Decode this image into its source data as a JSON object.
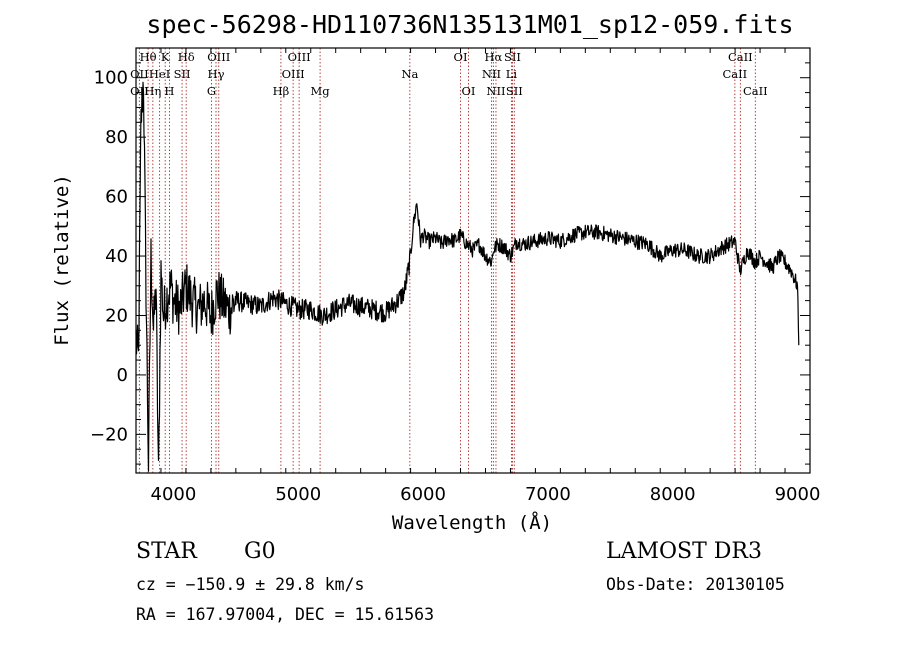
{
  "chart_data": {
    "type": "line",
    "title": "spec-56298-HD110736N135131M01_sp12-059.fits",
    "xlabel": "Wavelength (Å)",
    "ylabel": "Flux (relative)",
    "xlim": [
      3700,
      9100
    ],
    "ylim": [
      -33,
      110
    ],
    "x_ticks": [
      4000,
      5000,
      6000,
      7000,
      8000,
      9000
    ],
    "y_ticks": [
      -20,
      0,
      20,
      40,
      60,
      80,
      100
    ],
    "grid": false,
    "series": [
      {
        "x": [
          3700,
          3720,
          3740,
          3760,
          3780,
          3800,
          3820,
          3840,
          3860,
          3880,
          3900,
          3920,
          3940,
          3960,
          3980,
          4000,
          4050,
          4100,
          4150,
          4200,
          4250,
          4300,
          4350,
          4400,
          4450,
          4500,
          4600,
          4700,
          4800,
          4900,
          5000,
          5100,
          5200,
          5300,
          5400,
          5500,
          5600,
          5700,
          5800,
          5850,
          5880,
          5900,
          5920,
          5950,
          5980,
          6000,
          6050,
          6100,
          6150,
          6200,
          6250,
          6300,
          6350,
          6400,
          6450,
          6500,
          6550,
          6563,
          6600,
          6650,
          6700,
          6750,
          6800,
          6900,
          7000,
          7100,
          7200,
          7300,
          7400,
          7500,
          7600,
          7700,
          7800,
          7900,
          8000,
          8100,
          8200,
          8300,
          8400,
          8500,
          8540,
          8600,
          8660,
          8700,
          8800,
          8850,
          8900,
          8950,
          9000,
          9010
        ],
        "y": [
          12,
          5,
          85,
          100,
          30,
          -30,
          40,
          15,
          30,
          -35,
          35,
          20,
          25,
          28,
          30,
          25,
          22,
          30,
          25,
          22,
          25,
          20,
          28,
          24,
          22,
          25,
          24,
          23,
          26,
          24,
          22,
          22,
          20,
          22,
          24,
          23,
          22,
          21,
          25,
          28,
          35,
          40,
          50,
          58,
          45,
          47,
          45,
          46,
          44,
          46,
          45,
          47,
          44,
          42,
          44,
          40,
          38,
          42,
          44,
          43,
          40,
          45,
          44,
          45,
          46,
          45,
          47,
          48,
          48,
          47,
          46,
          45,
          44,
          40,
          42,
          42,
          40,
          40,
          43,
          45,
          35,
          42,
          38,
          40,
          36,
          40,
          38,
          35,
          30,
          10
        ],
        "line_labels": [
          {
            "text": "Hθ",
            "x": 3797,
            "row": 1
          },
          {
            "text": "OII",
            "x": 3727,
            "row": 2
          },
          {
            "text": "OII",
            "x": 3727,
            "row": 3
          },
          {
            "text": "HeI",
            "x": 3889,
            "row": 2
          },
          {
            "text": "Hη",
            "x": 3835,
            "row": 3
          },
          {
            "text": "K",
            "x": 3934,
            "row": 1
          },
          {
            "text": "H",
            "x": 3968,
            "row": 3
          },
          {
            "text": "Hδ",
            "x": 4102,
            "row": 1
          },
          {
            "text": "SII",
            "x": 4069,
            "row": 2
          },
          {
            "text": "OIII",
            "x": 4363,
            "row": 1
          },
          {
            "text": "Hγ",
            "x": 4341,
            "row": 2
          },
          {
            "text": "G",
            "x": 4305,
            "row": 3
          },
          {
            "text": "OIII",
            "x": 5007,
            "row": 1
          },
          {
            "text": "OIII",
            "x": 4959,
            "row": 2
          },
          {
            "text": "Hβ",
            "x": 4861,
            "row": 3
          },
          {
            "text": "Mg",
            "x": 5175,
            "row": 3
          },
          {
            "text": "Na",
            "x": 5894,
            "row": 2
          },
          {
            "text": "OI",
            "x": 6300,
            "row": 1
          },
          {
            "text": "OI",
            "x": 6364,
            "row": 3
          },
          {
            "text": "Hα",
            "x": 6563,
            "row": 1
          },
          {
            "text": "SII",
            "x": 6716,
            "row": 1
          },
          {
            "text": "NII",
            "x": 6548,
            "row": 2
          },
          {
            "text": "Li",
            "x": 6708,
            "row": 2
          },
          {
            "text": "NII",
            "x": 6584,
            "row": 3
          },
          {
            "text": "SII",
            "x": 6731,
            "row": 3
          },
          {
            "text": "CaII",
            "x": 8542,
            "row": 1
          },
          {
            "text": "CaII",
            "x": 8498,
            "row": 2
          },
          {
            "text": "CaII",
            "x": 8662,
            "row": 3
          }
        ],
        "line_positions": [
          3727,
          3797,
          3835,
          3889,
          3934,
          3968,
          4069,
          4102,
          4305,
          4341,
          4363,
          4861,
          4959,
          5007,
          5175,
          5894,
          6300,
          6364,
          6548,
          6563,
          6584,
          6708,
          6716,
          6731,
          8498,
          8542,
          8662
        ]
      }
    ]
  },
  "info": {
    "class": "STAR",
    "subclass": "G0",
    "survey": "LAMOST DR3",
    "cz": "cz = −150.9 ± 29.8 km/s",
    "obs_date": "Obs-Date: 20130105",
    "radec": "RA = 167.97004, DEC =  15.61563"
  },
  "colors": {
    "spectrum": "#000000",
    "line_markers": "#b03030",
    "axes": "#000000"
  }
}
